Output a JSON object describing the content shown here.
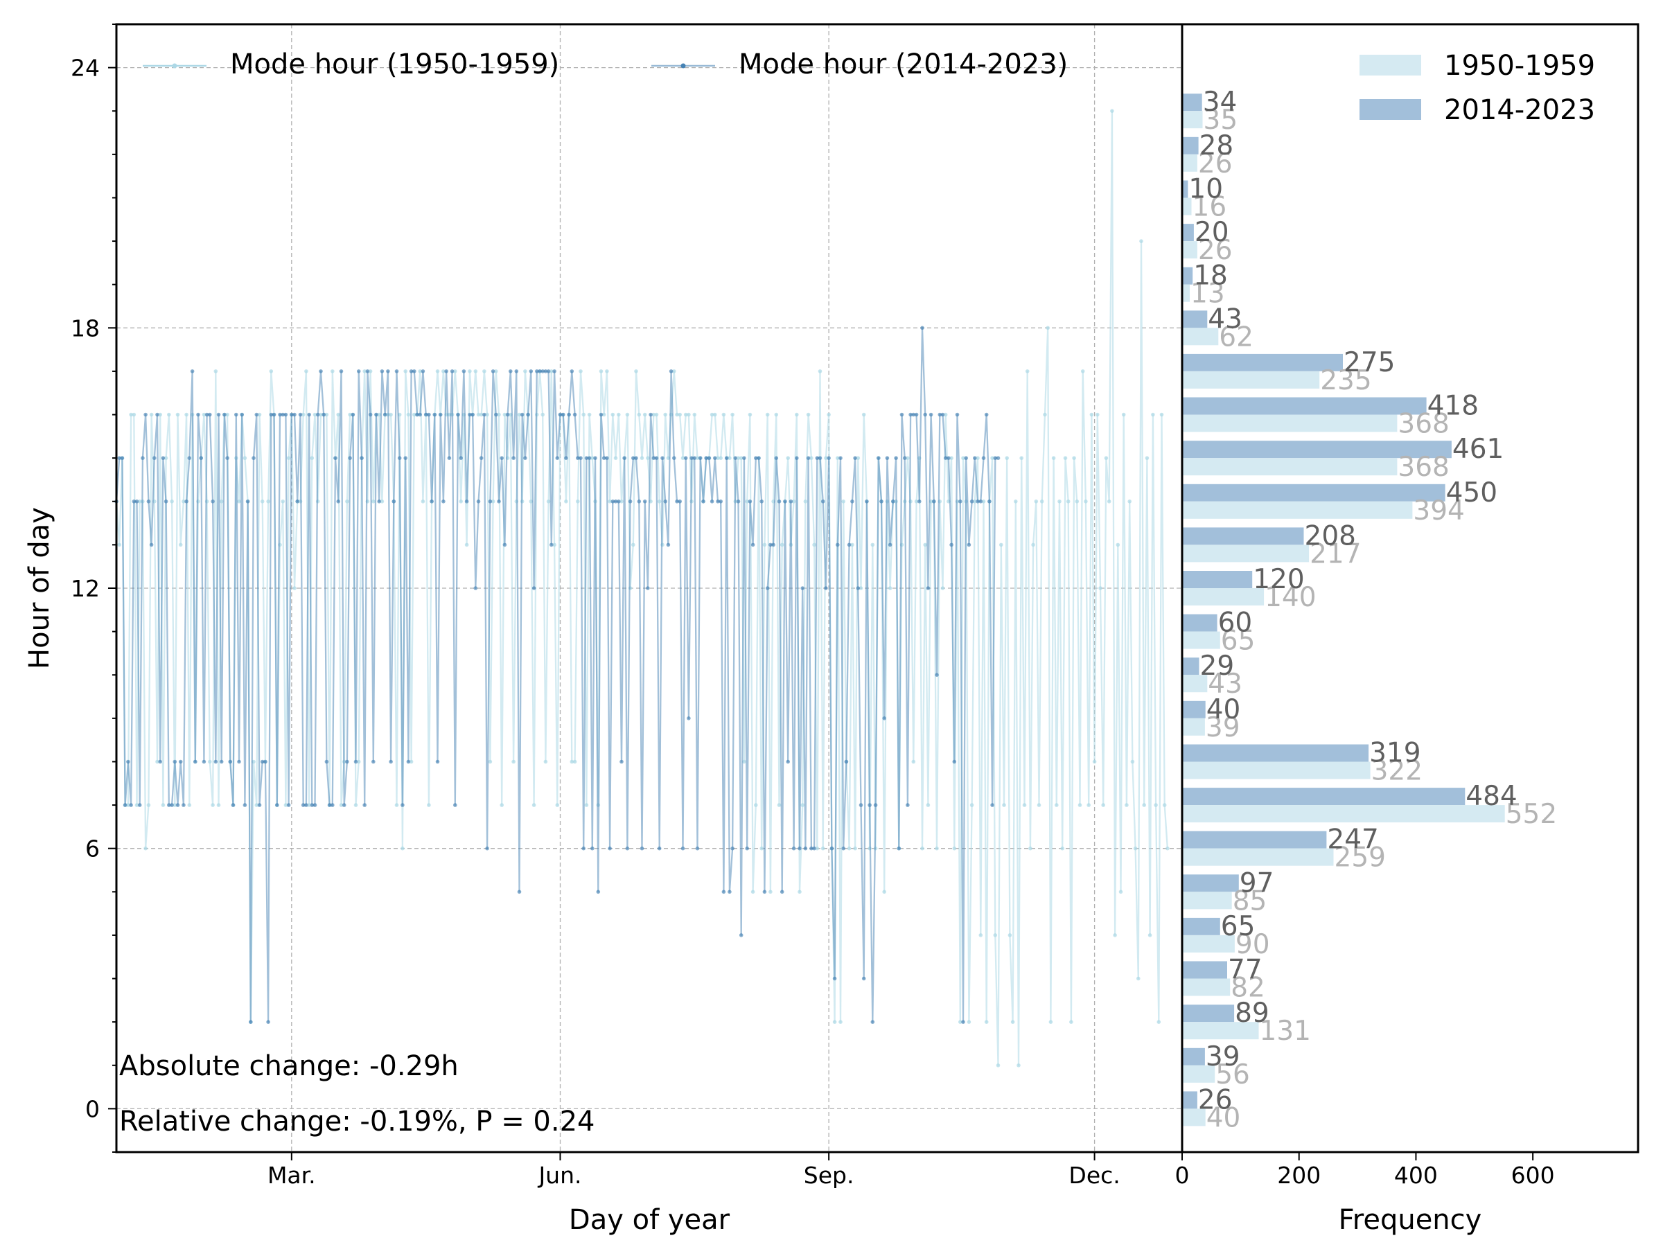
{
  "colors": {
    "early": "#add8e6",
    "recent": "#4682b4",
    "early_bar": "#d5eaf2",
    "recent_bar": "#a2bfda",
    "early_label": "#b4b4b4",
    "recent_label": "#5f5f5f"
  },
  "chart_data": [
    {
      "type": "line",
      "xlabel": "Day of year",
      "ylabel": "Hour of day",
      "xlim": [
        1,
        366
      ],
      "ylim": [
        -1,
        25
      ],
      "x_ticks": [
        {
          "value": 61,
          "label": "Mar."
        },
        {
          "value": 153,
          "label": "Jun."
        },
        {
          "value": 245,
          "label": "Sep."
        },
        {
          "value": 336,
          "label": "Dec."
        }
      ],
      "y_ticks": [
        {
          "value": 0,
          "label": "0"
        },
        {
          "value": 6,
          "label": "6"
        },
        {
          "value": 12,
          "label": "12"
        },
        {
          "value": 18,
          "label": "18"
        },
        {
          "value": 24,
          "label": "24"
        }
      ],
      "grid": true,
      "legend_position": "top",
      "series": [
        {
          "name": "Mode hour (1950-1959)",
          "color": "#add8e6",
          "x_start": 1,
          "values": [
            14,
            13,
            15,
            7,
            7,
            16,
            16,
            7,
            14,
            14,
            6,
            7,
            16,
            14,
            8,
            16,
            7,
            15,
            16,
            14,
            7,
            16,
            13,
            14,
            16,
            7,
            16,
            8,
            14,
            15,
            16,
            14,
            8,
            7,
            17,
            7,
            14,
            16,
            16,
            8,
            7,
            15,
            14,
            16,
            15,
            14,
            2,
            8,
            7,
            16,
            14,
            8,
            14,
            17,
            16,
            7,
            13,
            14,
            7,
            15,
            16,
            12,
            14,
            14,
            16,
            17,
            7,
            15,
            16,
            14,
            16,
            16,
            16,
            7,
            17,
            15,
            16,
            7,
            8,
            14,
            16,
            16,
            7,
            8,
            15,
            17,
            14,
            17,
            14,
            16,
            16,
            14,
            16,
            16,
            16,
            14,
            7,
            16,
            6,
            17,
            16,
            8,
            16,
            16,
            17,
            14,
            16,
            7,
            14,
            16,
            17,
            16,
            17,
            16,
            16,
            16,
            17,
            16,
            14,
            16,
            13,
            17,
            16,
            17,
            16,
            16,
            17,
            16,
            8,
            14,
            17,
            16,
            7,
            16,
            15,
            16,
            8,
            14,
            16,
            14,
            17,
            16,
            14,
            7,
            16,
            17,
            16,
            8,
            14,
            17,
            13,
            7,
            16,
            16,
            14,
            16,
            8,
            8,
            14,
            17,
            16,
            7,
            16,
            15,
            14,
            7,
            17,
            16,
            17,
            14,
            16,
            15,
            16,
            14,
            15,
            16,
            12,
            13,
            17,
            16,
            15,
            16,
            15,
            14,
            16,
            16,
            14,
            13,
            16,
            15,
            16,
            17,
            16,
            16,
            15,
            16,
            16,
            14,
            16,
            15,
            15,
            14,
            15,
            15,
            16,
            16,
            15,
            15,
            16,
            15,
            15,
            16,
            14,
            15,
            15,
            8,
            14,
            16,
            5,
            7,
            15,
            6,
            13,
            16,
            5,
            14,
            16,
            7,
            13,
            14,
            15,
            13,
            14,
            16,
            5,
            7,
            14,
            16,
            15,
            13,
            6,
            17,
            6,
            15,
            16,
            6,
            2,
            15,
            2,
            14,
            8,
            6,
            13,
            6,
            15,
            12,
            16,
            14,
            6,
            13,
            6,
            15,
            14,
            5,
            14,
            12,
            14,
            14,
            6,
            13,
            14,
            15,
            14,
            8,
            14,
            15,
            6,
            13,
            7,
            14,
            14,
            6,
            14,
            12,
            16,
            14,
            15,
            6,
            14,
            2,
            15,
            14,
            2,
            7,
            14,
            15,
            4,
            14,
            2,
            14,
            15,
            4,
            1,
            13,
            7,
            15,
            4,
            2,
            14,
            1,
            15,
            7,
            17,
            6,
            13,
            14,
            7,
            14,
            16,
            18,
            2,
            15,
            7,
            14,
            6,
            15,
            14,
            2,
            15,
            14,
            7,
            17,
            14,
            7,
            16,
            8,
            16,
            12,
            7,
            15,
            14,
            23,
            4,
            13,
            5,
            16,
            7,
            14,
            8,
            6,
            3,
            20,
            7,
            15,
            4,
            16,
            7,
            2,
            16,
            7,
            6
          ],
          "width": 2.3,
          "marker_radius": 2.8
        },
        {
          "name": "Mode hour (2014-2023)",
          "color": "#4682b4",
          "x_start": 1,
          "values": [
            14,
            15,
            15,
            7,
            8,
            7,
            14,
            14,
            7,
            15,
            16,
            14,
            13,
            15,
            16,
            8,
            15,
            14,
            7,
            7,
            8,
            7,
            8,
            7,
            14,
            15,
            17,
            8,
            16,
            15,
            8,
            16,
            16,
            14,
            8,
            16,
            8,
            16,
            15,
            8,
            7,
            16,
            8,
            16,
            7,
            14,
            2,
            15,
            16,
            7,
            8,
            8,
            2,
            16,
            16,
            7,
            16,
            16,
            16,
            7,
            16,
            16,
            14,
            16,
            7,
            7,
            16,
            7,
            7,
            16,
            17,
            16,
            8,
            7,
            7,
            15,
            14,
            17,
            7,
            8,
            15,
            16,
            8,
            17,
            15,
            7,
            17,
            16,
            8,
            16,
            14,
            17,
            16,
            17,
            8,
            14,
            17,
            15,
            7,
            15,
            8,
            17,
            17,
            16,
            16,
            17,
            16,
            16,
            14,
            16,
            8,
            16,
            14,
            17,
            15,
            17,
            7,
            16,
            15,
            17,
            14,
            16,
            16,
            12,
            14,
            15,
            16,
            6,
            14,
            17,
            16,
            14,
            15,
            13,
            16,
            17,
            15,
            17,
            5,
            16,
            15,
            16,
            17,
            12,
            17,
            17,
            17,
            17,
            17,
            13,
            17,
            15,
            16,
            16,
            15,
            16,
            17,
            16,
            15,
            15,
            6,
            15,
            15,
            6,
            15,
            5,
            16,
            15,
            15,
            6,
            14,
            14,
            14,
            8,
            15,
            6,
            14,
            15,
            15,
            14,
            6,
            14,
            12,
            16,
            15,
            15,
            6,
            15,
            14,
            13,
            17,
            15,
            14,
            14,
            6,
            15,
            9,
            15,
            15,
            6,
            15,
            14,
            15,
            15,
            14,
            15,
            14,
            14,
            5,
            15,
            5,
            6,
            15,
            14,
            4,
            15,
            6,
            14,
            13,
            15,
            15,
            14,
            5,
            12,
            13,
            13,
            15,
            14,
            5,
            14,
            8,
            14,
            6,
            15,
            6,
            12,
            6,
            15,
            6,
            6,
            15,
            15,
            14,
            12,
            15,
            6,
            3,
            13,
            15,
            6,
            8,
            13,
            14,
            15,
            12,
            7,
            3,
            14,
            7,
            2,
            7,
            15,
            14,
            9,
            15,
            13,
            14,
            15,
            6,
            16,
            15,
            7,
            16,
            16,
            16,
            14,
            18,
            16,
            12,
            16,
            14,
            10,
            16,
            16,
            15,
            15,
            13,
            8,
            16,
            14,
            2,
            15,
            13,
            14,
            15,
            14,
            14,
            15,
            16,
            14,
            7,
            15,
            15
          ],
          "width": 2.3,
          "marker_radius": 2.8
        }
      ]
    },
    {
      "type": "bar",
      "orientation": "horizontal",
      "xlabel": "Frequency",
      "xlim": [
        0,
        780
      ],
      "x_ticks": [
        0,
        200,
        400,
        600
      ],
      "categories": [
        "0",
        "1",
        "2",
        "3",
        "4",
        "5",
        "6",
        "7",
        "8",
        "9",
        "10",
        "11",
        "12",
        "13",
        "14",
        "15",
        "16",
        "17",
        "18",
        "19",
        "20",
        "21",
        "22",
        "23"
      ],
      "legend_position": "top-right",
      "series": [
        {
          "name": "1950-1959",
          "color": "#d5eaf2",
          "values": [
            40,
            56,
            131,
            82,
            90,
            85,
            259,
            552,
            322,
            39,
            43,
            65,
            140,
            217,
            394,
            368,
            368,
            235,
            62,
            13,
            26,
            16,
            26,
            35
          ]
        },
        {
          "name": "2014-2023",
          "color": "#a2bfda",
          "values": [
            26,
            39,
            89,
            77,
            65,
            97,
            247,
            484,
            319,
            40,
            29,
            60,
            120,
            208,
            450,
            461,
            418,
            275,
            43,
            18,
            20,
            10,
            28,
            34
          ]
        }
      ]
    }
  ],
  "annotations": {
    "absolute_change": "Absolute change: -0.29h",
    "relative_change": "Relative change: -0.19%, P = 0.24"
  }
}
